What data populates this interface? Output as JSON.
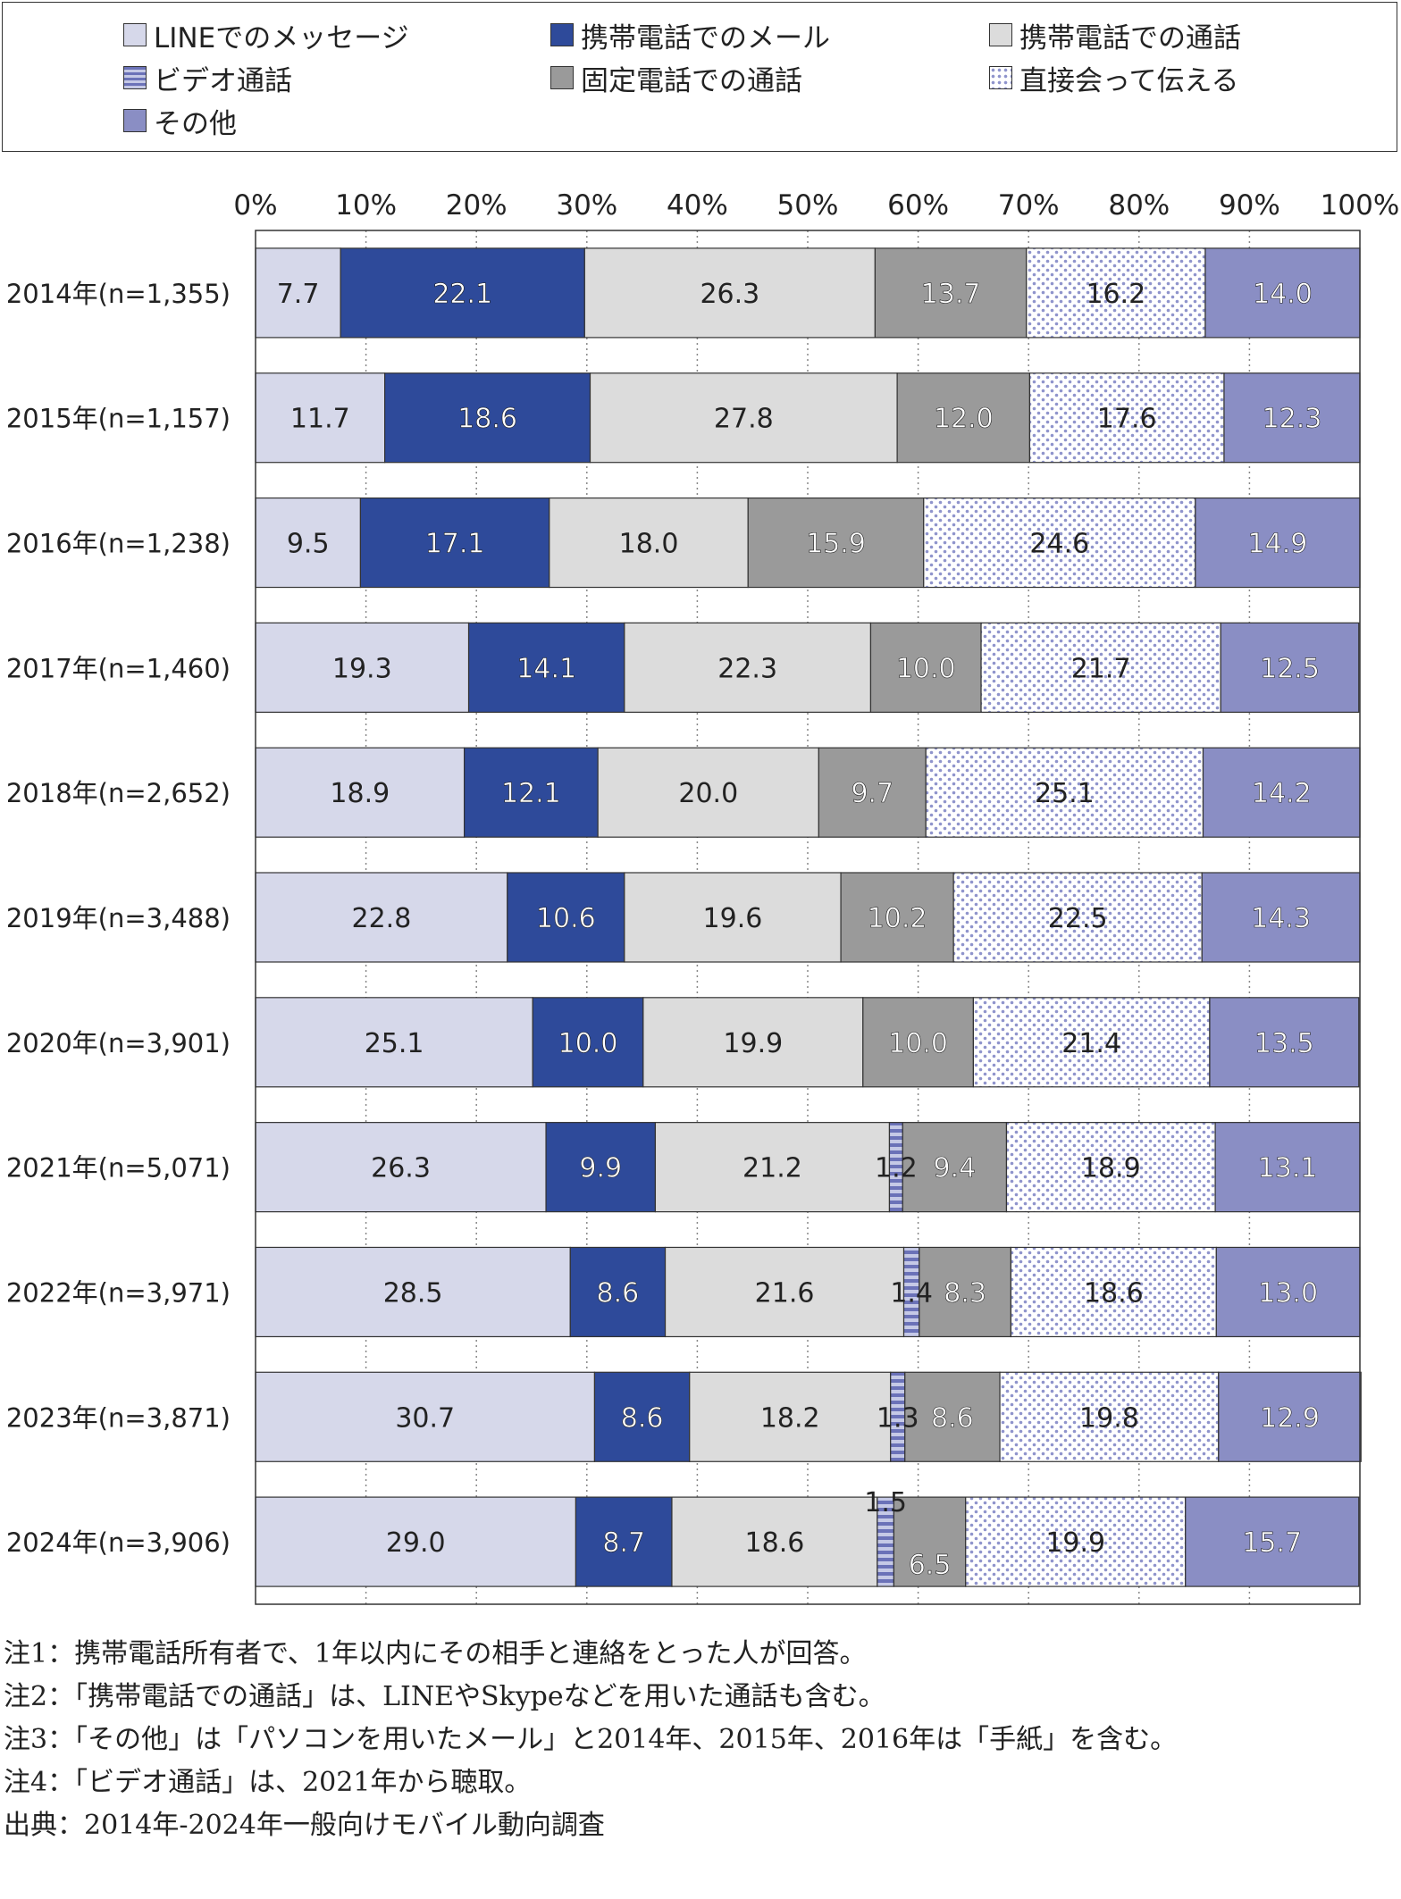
{
  "chart_data": {
    "type": "bar",
    "orientation": "horizontal",
    "stacked": true,
    "percent": true,
    "xlim": [
      0,
      100
    ],
    "x_ticks": [
      "0%",
      "10%",
      "20%",
      "30%",
      "40%",
      "50%",
      "60%",
      "70%",
      "80%",
      "90%",
      "100%"
    ],
    "grid": true,
    "legend_position": "top",
    "categories": [
      "2014年(n=1,355)",
      "2015年(n=1,157)",
      "2016年(n=1,238)",
      "2017年(n=1,460)",
      "2018年(n=2,652)",
      "2019年(n=3,488)",
      "2020年(n=3,901)",
      "2021年(n=5,071)",
      "2022年(n=3,971)",
      "2023年(n=3,871)",
      "2024年(n=3,906)"
    ],
    "series": [
      {
        "name": "LINEでのメッセージ",
        "color": "#d6d8ea",
        "pattern": "solid",
        "values": [
          7.7,
          11.7,
          9.5,
          19.3,
          18.9,
          22.8,
          25.1,
          26.3,
          28.5,
          30.7,
          29.0
        ]
      },
      {
        "name": "携帯電話でのメール",
        "color": "#2e4a9a",
        "pattern": "solid",
        "values": [
          22.1,
          18.6,
          17.1,
          14.1,
          12.1,
          10.6,
          10.0,
          9.9,
          8.6,
          8.6,
          8.7
        ]
      },
      {
        "name": "携帯電話での通話",
        "color": "#dcdcdc",
        "pattern": "solid",
        "values": [
          26.3,
          27.8,
          18.0,
          22.3,
          20.0,
          19.6,
          19.9,
          21.2,
          21.6,
          18.2,
          18.6
        ]
      },
      {
        "name": "ビデオ通話",
        "color": "#7f86c2",
        "pattern": "stripes",
        "values": [
          null,
          null,
          null,
          null,
          null,
          null,
          null,
          1.2,
          1.4,
          1.3,
          1.5
        ]
      },
      {
        "name": "固定電話での通話",
        "color": "#9a9a9a",
        "pattern": "solid",
        "values": [
          13.7,
          12.0,
          15.9,
          10.0,
          9.7,
          10.2,
          10.0,
          9.4,
          8.3,
          8.6,
          6.5
        ]
      },
      {
        "name": "直接会って伝える",
        "color": "#8f94cc",
        "pattern": "dots",
        "values": [
          16.2,
          17.6,
          24.6,
          21.7,
          25.1,
          22.5,
          21.4,
          18.9,
          18.6,
          19.8,
          19.9
        ]
      },
      {
        "name": "その他",
        "color": "#8a8ec4",
        "pattern": "solid",
        "values": [
          14.0,
          12.3,
          14.9,
          12.5,
          14.2,
          14.3,
          13.5,
          13.1,
          13.0,
          12.9,
          15.7
        ]
      }
    ]
  },
  "notes": [
    "注1：携帯電話所有者で、1年以内にその相手と連絡をとった人が回答。",
    "注2：「携帯電話での通話」は、LINEやSkypeなどを用いた通話も含む。",
    "注3：「その他」は「パソコンを用いたメール」と2014年、2015年、2016年は「手紙」を含む。",
    "注4：「ビデオ通話」は、2021年から聴取。",
    "出典：2014年-2024年一般向けモバイル動向調査"
  ]
}
